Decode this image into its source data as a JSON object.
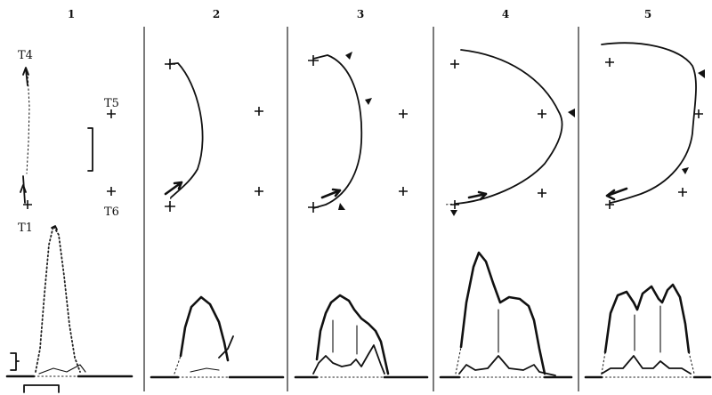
{
  "panels": [
    {
      "number": "1"
    },
    {
      "number": "2"
    },
    {
      "number": "3"
    },
    {
      "number": "4"
    },
    {
      "number": "5"
    }
  ],
  "markers": {
    "t4": "T4",
    "t5": "T5",
    "t6": "T6",
    "t1": "T1"
  },
  "colors": {
    "ink": "#111111",
    "background": "#ffffff"
  }
}
